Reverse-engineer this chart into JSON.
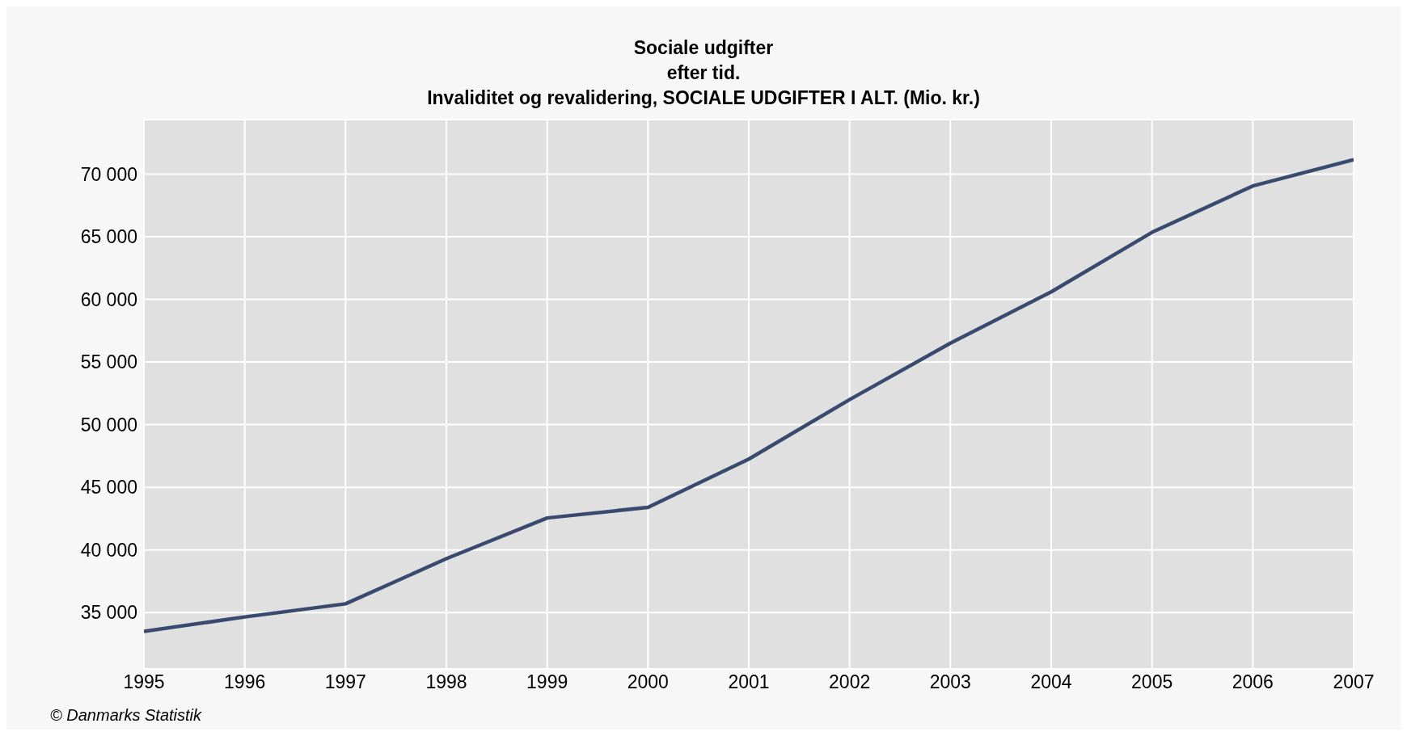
{
  "chart_data": {
    "type": "line",
    "title": "Sociale udgifter\nefter tid.\nInvaliditet og revalidering, SOCIALE UDGIFTER I ALT. (Mio. kr.)",
    "x": [
      1995,
      1996,
      1997,
      1998,
      1999,
      2000,
      2001,
      2002,
      2003,
      2004,
      2005,
      2006,
      2007
    ],
    "series": [
      {
        "color": "#3a4a6e",
        "values": [
          33500,
          34650,
          35700,
          39300,
          42550,
          43400,
          47250,
          52000,
          56500,
          60600,
          65350,
          69050,
          71150
        ]
      }
    ],
    "xlim": [
      1995,
      2007
    ],
    "xticks": [
      1995,
      1996,
      1997,
      1998,
      1999,
      2000,
      2001,
      2002,
      2003,
      2004,
      2005,
      2006,
      2007
    ],
    "ylim": [
      30500,
      74350
    ],
    "yticks": [
      35000,
      40000,
      45000,
      50000,
      55000,
      60000,
      65000,
      70000
    ],
    "grid": true,
    "marker": "none",
    "line_style": "solid",
    "annotations": [
      "© Danmarks Statistik"
    ]
  }
}
